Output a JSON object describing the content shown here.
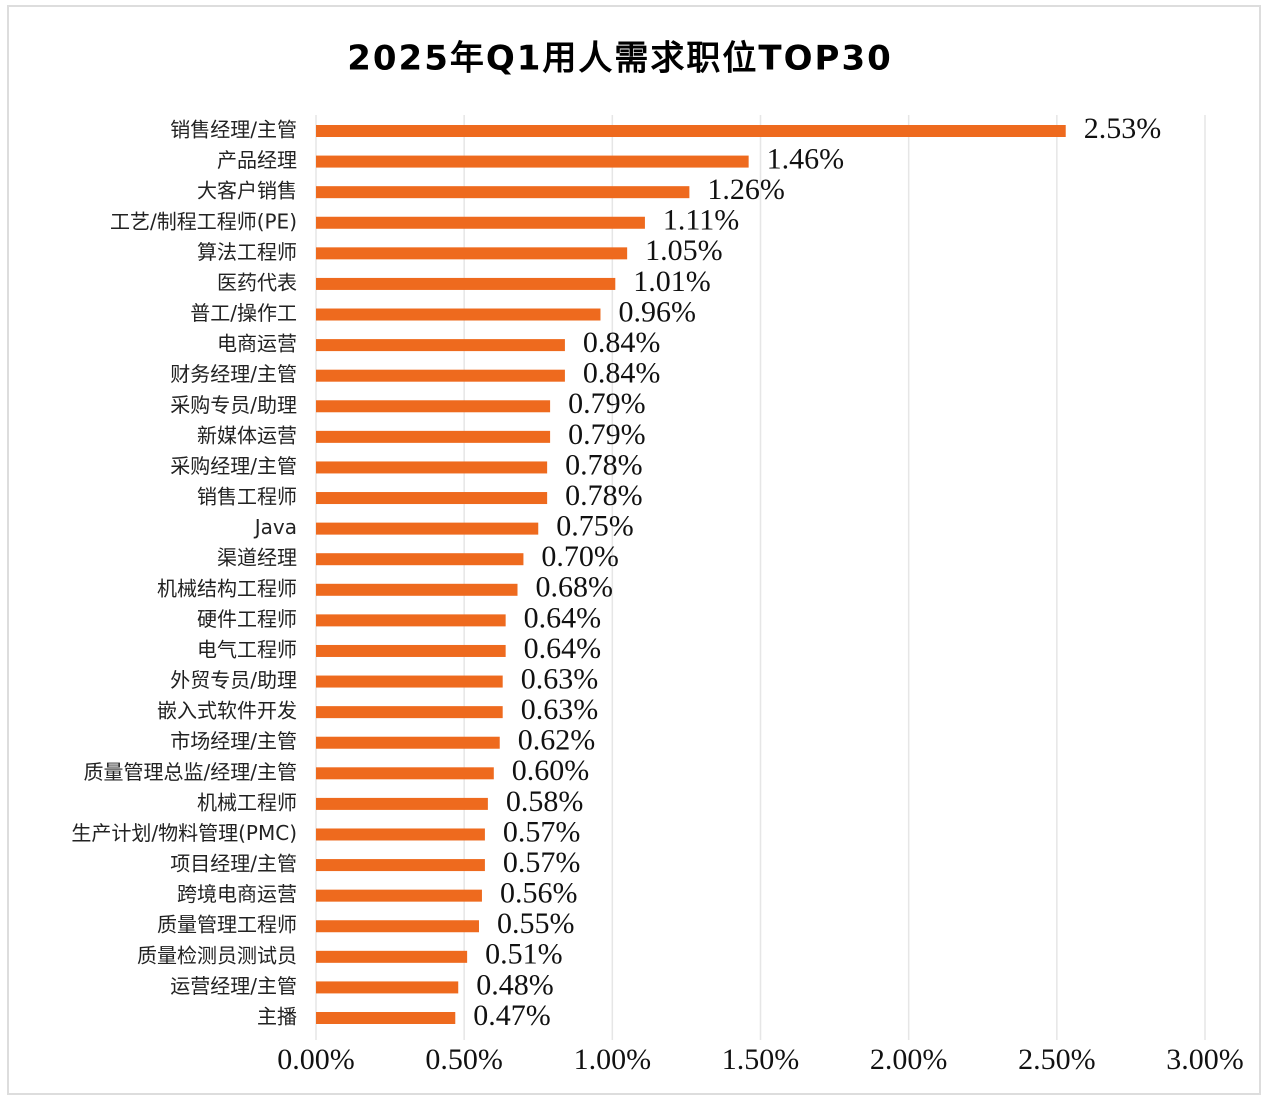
{
  "chart_data": {
    "type": "bar",
    "orientation": "horizontal",
    "title": "2025年Q1用人需求职位TOP30",
    "categories": [
      "销售经理/主管",
      "产品经理",
      "大客户销售",
      "工艺/制程工程师(PE)",
      "算法工程师",
      "医药代表",
      "普工/操作工",
      "电商运营",
      "财务经理/主管",
      "采购专员/助理",
      "新媒体运营",
      "采购经理/主管",
      "销售工程师",
      "Java",
      "渠道经理",
      "机械结构工程师",
      "硬件工程师",
      "电气工程师",
      "外贸专员/助理",
      "嵌入式软件开发",
      "市场经理/主管",
      "质量管理总监/经理/主管",
      "机械工程师",
      "生产计划/物料管理(PMC)",
      "项目经理/主管",
      "跨境电商运营",
      "质量管理工程师",
      "质量检测员测试员",
      "运营经理/主管",
      "主播"
    ],
    "values": [
      2.53,
      1.46,
      1.26,
      1.11,
      1.05,
      1.01,
      0.96,
      0.84,
      0.84,
      0.79,
      0.79,
      0.78,
      0.78,
      0.75,
      0.7,
      0.68,
      0.64,
      0.64,
      0.63,
      0.63,
      0.62,
      0.6,
      0.58,
      0.57,
      0.57,
      0.56,
      0.55,
      0.51,
      0.48,
      0.47
    ],
    "value_labels": [
      "2.53%",
      "1.46%",
      "1.26%",
      "1.11%",
      "1.05%",
      "1.01%",
      "0.96%",
      "0.84%",
      "0.84%",
      "0.79%",
      "0.79%",
      "0.78%",
      "0.78%",
      "0.75%",
      "0.70%",
      "0.68%",
      "0.64%",
      "0.64%",
      "0.63%",
      "0.63%",
      "0.62%",
      "0.60%",
      "0.58%",
      "0.57%",
      "0.57%",
      "0.56%",
      "0.55%",
      "0.51%",
      "0.48%",
      "0.47%"
    ],
    "color": "#ee6a1e",
    "xlim": [
      0,
      3
    ],
    "xticks": [
      {
        "value": 0,
        "label": "0.00%"
      },
      {
        "value": 0.5,
        "label": "0.50%"
      },
      {
        "value": 1,
        "label": "1.00%"
      },
      {
        "value": 1.5,
        "label": "1.50%"
      },
      {
        "value": 2,
        "label": "2.00%"
      },
      {
        "value": 2.5,
        "label": "2.50%"
      },
      {
        "value": 3,
        "label": "3.00%"
      }
    ],
    "grid": true
  }
}
